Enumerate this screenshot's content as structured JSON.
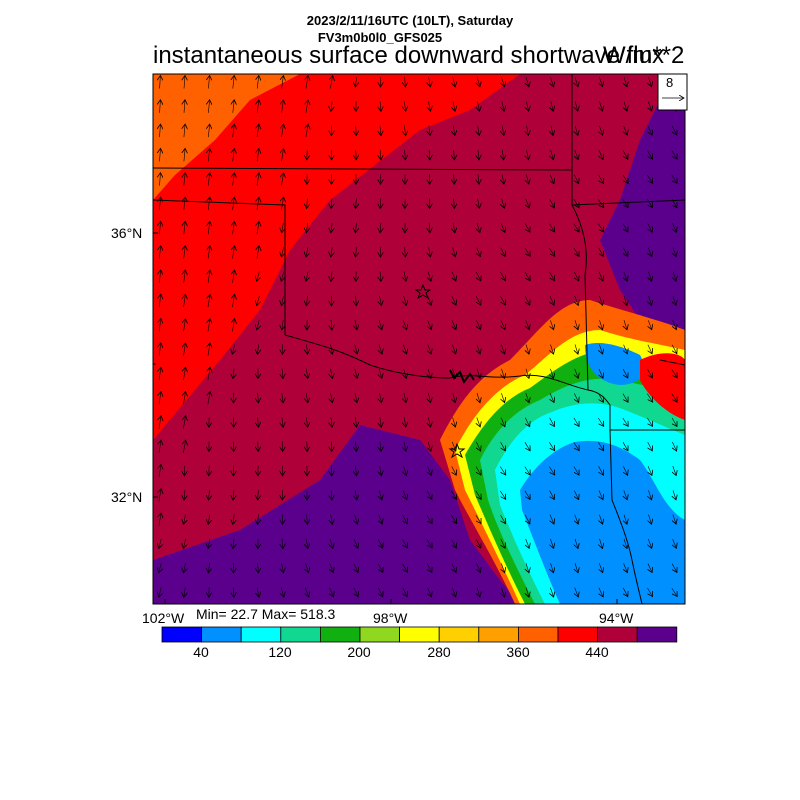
{
  "header": {
    "datetime": "2023/2/11/16UTC (10LT), Saturday",
    "model": "FV3m0b0l0_GFS025",
    "title": "instantaneous surface downward shortwave flux",
    "units": "W/m**2"
  },
  "map": {
    "region": "Oklahoma / north Texas",
    "lat_labels": [
      "36°N",
      "32°N"
    ],
    "lon_labels": [
      "102°W",
      "98°W",
      "94°W"
    ],
    "markers": [
      "star",
      "star"
    ]
  },
  "vector_legend": {
    "magnitude": "8"
  },
  "stats": {
    "text": "Min= 22.7 Max= 518.3",
    "min": 22.7,
    "max": 518.3
  },
  "colorbar": {
    "labels": [
      "40",
      "120",
      "200",
      "280",
      "360",
      "440"
    ],
    "colors": [
      "#0000ff",
      "#0090ff",
      "#00ffff",
      "#10d890",
      "#10b010",
      "#90d820",
      "#ffff00",
      "#ffd000",
      "#ffa000",
      "#ff6000",
      "#ff0000",
      "#b0003a",
      "#5a008c"
    ]
  },
  "palette": {
    "cloud_hi": "#5a008c",
    "bg_main": "#b0003a",
    "red": "#ff0000",
    "orange": "#ff6000"
  }
}
